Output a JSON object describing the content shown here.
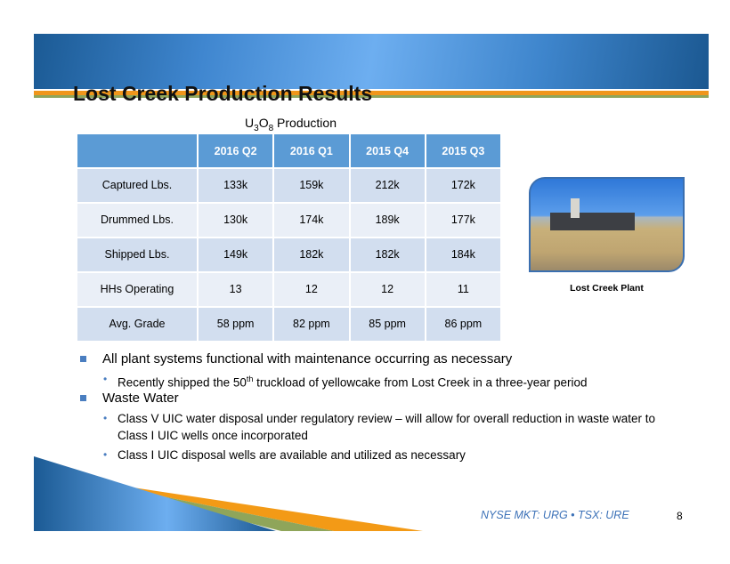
{
  "title": "Lost Creek Production Results",
  "table": {
    "caption_prefix": "U",
    "caption_sub1": "3",
    "caption_mid": "O",
    "caption_sub2": "8",
    "caption_suffix": " Production",
    "columns": [
      "",
      "2016 Q2",
      "2016 Q1",
      "2015 Q4",
      "2015 Q3"
    ],
    "rows": [
      {
        "label": "Captured Lbs.",
        "values": [
          "133k",
          "159k",
          "212k",
          "172k"
        ]
      },
      {
        "label": "Drummed Lbs.",
        "values": [
          "130k",
          "174k",
          "189k",
          "177k"
        ]
      },
      {
        "label": "Shipped Lbs.",
        "values": [
          "149k",
          "182k",
          "182k",
          "184k"
        ]
      },
      {
        "label": "HHs Operating",
        "values": [
          "13",
          "12",
          "12",
          "11"
        ]
      },
      {
        "label": "Avg. Grade",
        "values": [
          "58 ppm",
          "82 ppm",
          "85 ppm",
          "86 ppm"
        ]
      }
    ]
  },
  "photo": {
    "caption": "Lost Creek Plant"
  },
  "bullets": [
    {
      "text": "All plant systems functional with maintenance occurring as necessary",
      "sub": [
        {
          "pre": "Recently shipped the 50",
          "sup": "th",
          "post": " truckload of yellowcake from Lost Creek in a three-year period"
        }
      ]
    },
    {
      "text": "Waste Water",
      "sub": [
        {
          "text": "Class V UIC water disposal under regulatory review  – will allow for overall reduction in waste water to Class I UIC wells once incorporated"
        },
        {
          "text": "Class I UIC disposal wells are available and utilized as necessary"
        }
      ]
    }
  ],
  "footer": {
    "ticker": "NYSE MKT: URG • TSX: URE",
    "page": "8"
  },
  "colors": {
    "header_blue": "#5b9bd5",
    "row_dark": "#d2deef",
    "row_light": "#eaeff7",
    "orange": "#f0961b",
    "green": "#8fa55a"
  }
}
